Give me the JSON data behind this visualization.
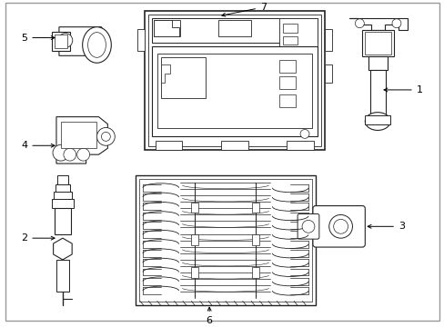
{
  "background_color": "#ffffff",
  "line_color": "#222222",
  "figsize": [
    4.89,
    3.6
  ],
  "dpi": 100,
  "border_color": "#aaaaaa"
}
